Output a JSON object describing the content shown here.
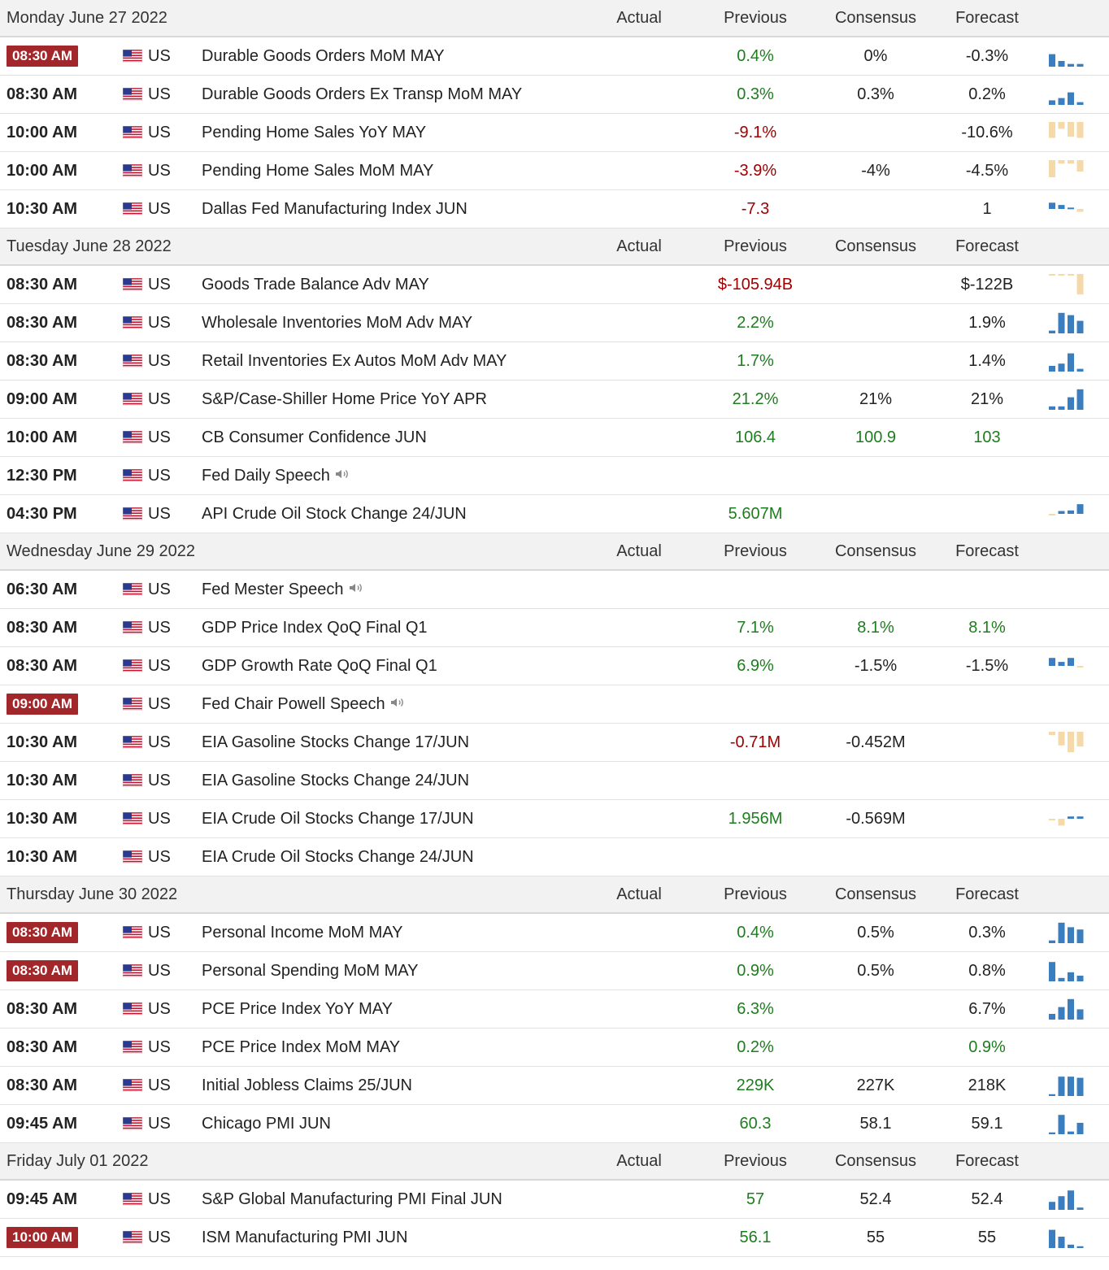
{
  "columns": {
    "actual": "Actual",
    "previous": "Previous",
    "consensus": "Consensus",
    "forecast": "Forecast"
  },
  "colors": {
    "highlight": "#a2272a",
    "positive": "#1e7d1e",
    "negative": "#a00000",
    "bar_blue": "#3a7ebf",
    "bar_tan": "#f5d9a8"
  },
  "days": [
    {
      "date": "Monday June 27 2022",
      "events": [
        {
          "time": "08:30 AM",
          "highlight": true,
          "country": "US",
          "name": "Durable Goods Orders MoM MAY",
          "actual": "",
          "previous": "0.4%",
          "previous_tone": "pos",
          "consensus": "0%",
          "consensus_tone": "neu",
          "forecast": "-0.3%",
          "forecast_tone": "neu",
          "spark": [
            {
              "v": 0.55,
              "c": "b"
            },
            {
              "v": 0.25,
              "c": "b"
            },
            {
              "v": 0.12,
              "c": "b"
            },
            {
              "v": 0.12,
              "c": "b"
            }
          ]
        },
        {
          "time": "08:30 AM",
          "highlight": false,
          "country": "US",
          "name": "Durable Goods Orders Ex Transp MoM MAY",
          "actual": "",
          "previous": "0.3%",
          "previous_tone": "pos",
          "consensus": "0.3%",
          "consensus_tone": "neu",
          "forecast": "0.2%",
          "forecast_tone": "neu",
          "spark": [
            {
              "v": 0.2,
              "c": "b"
            },
            {
              "v": 0.3,
              "c": "b"
            },
            {
              "v": 0.55,
              "c": "b"
            },
            {
              "v": 0.12,
              "c": "b"
            }
          ]
        },
        {
          "time": "10:00 AM",
          "highlight": false,
          "country": "US",
          "name": "Pending Home Sales YoY MAY",
          "actual": "",
          "previous": "-9.1%",
          "previous_tone": "neg",
          "consensus": "",
          "consensus_tone": "neu",
          "forecast": "-10.6%",
          "forecast_tone": "neu",
          "spark": [
            {
              "v": -0.7,
              "c": "t"
            },
            {
              "v": -0.3,
              "c": "t"
            },
            {
              "v": -0.65,
              "c": "t"
            },
            {
              "v": -0.7,
              "c": "t"
            }
          ]
        },
        {
          "time": "10:00 AM",
          "highlight": false,
          "country": "US",
          "name": "Pending Home Sales MoM MAY",
          "actual": "",
          "previous": "-3.9%",
          "previous_tone": "neg",
          "consensus": "-4%",
          "consensus_tone": "neu",
          "forecast": "-4.5%",
          "forecast_tone": "neu",
          "spark": [
            {
              "v": -0.75,
              "c": "t"
            },
            {
              "v": -0.15,
              "c": "t"
            },
            {
              "v": -0.15,
              "c": "t"
            },
            {
              "v": -0.5,
              "c": "t"
            }
          ]
        },
        {
          "time": "10:30 AM",
          "highlight": false,
          "country": "US",
          "name": "Dallas Fed Manufacturing Index JUN",
          "actual": "",
          "previous": "-7.3",
          "previous_tone": "neg",
          "consensus": "",
          "consensus_tone": "neu",
          "forecast": "1",
          "forecast_tone": "neu",
          "spark": [
            {
              "v": 0.55,
              "c": "b"
            },
            {
              "v": 0.35,
              "c": "b"
            },
            {
              "v": 0.12,
              "c": "b"
            },
            {
              "v": -0.25,
              "c": "t"
            }
          ]
        }
      ]
    },
    {
      "date": "Tuesday June 28 2022",
      "events": [
        {
          "time": "08:30 AM",
          "highlight": false,
          "country": "US",
          "name": "Goods Trade Balance Adv MAY",
          "actual": "",
          "previous": "$-105.94B",
          "previous_tone": "neg",
          "consensus": "",
          "consensus_tone": "neu",
          "forecast": "$-122B",
          "forecast_tone": "neu",
          "spark": [
            {
              "v": -0.06,
              "c": "t"
            },
            {
              "v": -0.06,
              "c": "t"
            },
            {
              "v": -0.06,
              "c": "t"
            },
            {
              "v": -0.9,
              "c": "t"
            }
          ]
        },
        {
          "time": "08:30 AM",
          "highlight": false,
          "country": "US",
          "name": "Wholesale Inventories MoM Adv MAY",
          "actual": "",
          "previous": "2.2%",
          "previous_tone": "pos",
          "consensus": "",
          "consensus_tone": "neu",
          "forecast": "1.9%",
          "forecast_tone": "neu",
          "spark": [
            {
              "v": 0.12,
              "c": "b"
            },
            {
              "v": 0.9,
              "c": "b"
            },
            {
              "v": 0.8,
              "c": "b"
            },
            {
              "v": 0.55,
              "c": "b"
            }
          ]
        },
        {
          "time": "08:30 AM",
          "highlight": false,
          "country": "US",
          "name": "Retail Inventories Ex Autos MoM Adv MAY",
          "actual": "",
          "previous": "1.7%",
          "previous_tone": "pos",
          "consensus": "",
          "consensus_tone": "neu",
          "forecast": "1.4%",
          "forecast_tone": "neu",
          "spark": [
            {
              "v": 0.25,
              "c": "b"
            },
            {
              "v": 0.35,
              "c": "b"
            },
            {
              "v": 0.8,
              "c": "b"
            },
            {
              "v": 0.12,
              "c": "b"
            }
          ]
        },
        {
          "time": "09:00 AM",
          "highlight": false,
          "country": "US",
          "name": "S&P/Case-Shiller Home Price YoY APR",
          "actual": "",
          "previous": "21.2%",
          "previous_tone": "pos",
          "consensus": "21%",
          "consensus_tone": "neu",
          "forecast": "21%",
          "forecast_tone": "neu",
          "spark": [
            {
              "v": 0.15,
              "c": "b"
            },
            {
              "v": 0.15,
              "c": "b"
            },
            {
              "v": 0.55,
              "c": "b"
            },
            {
              "v": 0.9,
              "c": "b"
            }
          ]
        },
        {
          "time": "10:00 AM",
          "highlight": false,
          "country": "US",
          "name": "CB Consumer Confidence JUN",
          "actual": "",
          "previous": "106.4",
          "previous_tone": "pos",
          "consensus": "100.9",
          "consensus_tone": "pos",
          "forecast": "103",
          "forecast_tone": "pos",
          "spark": []
        },
        {
          "time": "12:30 PM",
          "highlight": false,
          "country": "US",
          "name": "Fed Daily Speech",
          "speaker": true,
          "actual": "",
          "previous": "",
          "previous_tone": "neu",
          "consensus": "",
          "consensus_tone": "neu",
          "forecast": "",
          "forecast_tone": "neu",
          "spark": []
        },
        {
          "time": "04:30 PM",
          "highlight": false,
          "country": "US",
          "name": "API Crude Oil Stock Change 24/JUN",
          "actual": "",
          "previous": "5.607M",
          "previous_tone": "pos",
          "consensus": "",
          "consensus_tone": "neu",
          "forecast": "",
          "forecast_tone": "neu",
          "spark": [
            {
              "v": -0.1,
              "c": "t"
            },
            {
              "v": 0.25,
              "c": "b"
            },
            {
              "v": 0.3,
              "c": "b"
            },
            {
              "v": 0.85,
              "c": "b"
            }
          ]
        }
      ]
    },
    {
      "date": "Wednesday June 29 2022",
      "events": [
        {
          "time": "06:30 AM",
          "highlight": false,
          "country": "US",
          "name": "Fed Mester Speech",
          "speaker": true,
          "actual": "",
          "previous": "",
          "previous_tone": "neu",
          "consensus": "",
          "consensus_tone": "neu",
          "forecast": "",
          "forecast_tone": "neu",
          "spark": []
        },
        {
          "time": "08:30 AM",
          "highlight": false,
          "country": "US",
          "name": "GDP Price Index QoQ Final Q1",
          "actual": "",
          "previous": "7.1%",
          "previous_tone": "pos",
          "consensus": "8.1%",
          "consensus_tone": "pos",
          "forecast": "8.1%",
          "forecast_tone": "pos",
          "spark": []
        },
        {
          "time": "08:30 AM",
          "highlight": false,
          "country": "US",
          "name": "GDP Growth Rate QoQ Final Q1",
          "actual": "",
          "previous": "6.9%",
          "previous_tone": "pos",
          "consensus": "-1.5%",
          "consensus_tone": "neu",
          "forecast": "-1.5%",
          "forecast_tone": "neu",
          "spark": [
            {
              "v": 0.7,
              "c": "b"
            },
            {
              "v": 0.35,
              "c": "b"
            },
            {
              "v": 0.7,
              "c": "b"
            },
            {
              "v": -0.1,
              "c": "t"
            }
          ]
        },
        {
          "time": "09:00 AM",
          "highlight": true,
          "country": "US",
          "name": "Fed Chair Powell Speech",
          "speaker": true,
          "actual": "",
          "previous": "",
          "previous_tone": "neu",
          "consensus": "",
          "consensus_tone": "neu",
          "forecast": "",
          "forecast_tone": "neu",
          "spark": []
        },
        {
          "time": "10:30 AM",
          "highlight": false,
          "country": "US",
          "name": "EIA Gasoline Stocks Change 17/JUN",
          "actual": "",
          "previous": "-0.71M",
          "previous_tone": "neg",
          "consensus": "-0.452M",
          "consensus_tone": "neu",
          "forecast": "",
          "forecast_tone": "neu",
          "spark": [
            {
              "v": -0.15,
              "c": "t"
            },
            {
              "v": -0.6,
              "c": "t"
            },
            {
              "v": -0.9,
              "c": "t"
            },
            {
              "v": -0.65,
              "c": "t"
            }
          ]
        },
        {
          "time": "10:30 AM",
          "highlight": false,
          "country": "US",
          "name": "EIA Gasoline Stocks Change 24/JUN",
          "actual": "",
          "previous": "",
          "previous_tone": "neu",
          "consensus": "",
          "consensus_tone": "neu",
          "forecast": "",
          "forecast_tone": "neu",
          "spark": []
        },
        {
          "time": "10:30 AM",
          "highlight": false,
          "country": "US",
          "name": "EIA Crude Oil Stocks Change 17/JUN",
          "actual": "",
          "previous": "1.956M",
          "previous_tone": "pos",
          "consensus": "-0.569M",
          "consensus_tone": "neu",
          "forecast": "",
          "forecast_tone": "neu",
          "spark": [
            {
              "v": -0.08,
              "c": "t"
            },
            {
              "v": -0.6,
              "c": "t"
            },
            {
              "v": 0.2,
              "c": "b"
            },
            {
              "v": 0.2,
              "c": "b"
            }
          ]
        },
        {
          "time": "10:30 AM",
          "highlight": false,
          "country": "US",
          "name": "EIA Crude Oil Stocks Change 24/JUN",
          "actual": "",
          "previous": "",
          "previous_tone": "neu",
          "consensus": "",
          "consensus_tone": "neu",
          "forecast": "",
          "forecast_tone": "neu",
          "spark": []
        }
      ]
    },
    {
      "date": "Thursday June 30 2022",
      "events": [
        {
          "time": "08:30 AM",
          "highlight": true,
          "country": "US",
          "name": "Personal Income MoM MAY",
          "actual": "",
          "previous": "0.4%",
          "previous_tone": "pos",
          "consensus": "0.5%",
          "consensus_tone": "neu",
          "forecast": "0.3%",
          "forecast_tone": "neu",
          "spark": [
            {
              "v": 0.12,
              "c": "b"
            },
            {
              "v": 0.9,
              "c": "b"
            },
            {
              "v": 0.7,
              "c": "b"
            },
            {
              "v": 0.6,
              "c": "b"
            }
          ]
        },
        {
          "time": "08:30 AM",
          "highlight": true,
          "country": "US",
          "name": "Personal Spending MoM MAY",
          "actual": "",
          "previous": "0.9%",
          "previous_tone": "pos",
          "consensus": "0.5%",
          "consensus_tone": "neu",
          "forecast": "0.8%",
          "forecast_tone": "neu",
          "spark": [
            {
              "v": 0.85,
              "c": "b"
            },
            {
              "v": 0.15,
              "c": "b"
            },
            {
              "v": 0.4,
              "c": "b"
            },
            {
              "v": 0.25,
              "c": "b"
            }
          ]
        },
        {
          "time": "08:30 AM",
          "highlight": false,
          "country": "US",
          "name": "PCE Price Index YoY MAY",
          "actual": "",
          "previous": "6.3%",
          "previous_tone": "pos",
          "consensus": "",
          "consensus_tone": "neu",
          "forecast": "6.7%",
          "forecast_tone": "neu",
          "spark": [
            {
              "v": 0.25,
              "c": "b"
            },
            {
              "v": 0.55,
              "c": "b"
            },
            {
              "v": 0.9,
              "c": "b"
            },
            {
              "v": 0.45,
              "c": "b"
            }
          ]
        },
        {
          "time": "08:30 AM",
          "highlight": false,
          "country": "US",
          "name": "PCE Price Index MoM MAY",
          "actual": "",
          "previous": "0.2%",
          "previous_tone": "pos",
          "consensus": "",
          "consensus_tone": "neu",
          "forecast": "0.9%",
          "forecast_tone": "pos",
          "spark": []
        },
        {
          "time": "08:30 AM",
          "highlight": false,
          "country": "US",
          "name": "Initial Jobless Claims 25/JUN",
          "actual": "",
          "previous": "229K",
          "previous_tone": "pos",
          "consensus": "227K",
          "consensus_tone": "neu",
          "forecast": "218K",
          "forecast_tone": "neu",
          "spark": [
            {
              "v": 0.08,
              "c": "b"
            },
            {
              "v": 0.85,
              "c": "b"
            },
            {
              "v": 0.85,
              "c": "b"
            },
            {
              "v": 0.8,
              "c": "b"
            }
          ]
        },
        {
          "time": "09:45 AM",
          "highlight": false,
          "country": "US",
          "name": "Chicago PMI JUN",
          "actual": "",
          "previous": "60.3",
          "previous_tone": "pos",
          "consensus": "58.1",
          "consensus_tone": "neu",
          "forecast": "59.1",
          "forecast_tone": "neu",
          "spark": [
            {
              "v": 0.08,
              "c": "b"
            },
            {
              "v": 0.85,
              "c": "b"
            },
            {
              "v": 0.12,
              "c": "b"
            },
            {
              "v": 0.5,
              "c": "b"
            }
          ]
        }
      ]
    },
    {
      "date": "Friday July 01 2022",
      "events": [
        {
          "time": "09:45 AM",
          "highlight": false,
          "country": "US",
          "name": "S&P Global Manufacturing PMI Final JUN",
          "actual": "",
          "previous": "57",
          "previous_tone": "pos",
          "consensus": "52.4",
          "consensus_tone": "neu",
          "forecast": "52.4",
          "forecast_tone": "neu",
          "spark": [
            {
              "v": 0.35,
              "c": "b"
            },
            {
              "v": 0.6,
              "c": "b"
            },
            {
              "v": 0.85,
              "c": "b"
            },
            {
              "v": 0.1,
              "c": "b"
            }
          ]
        },
        {
          "time": "10:00 AM",
          "highlight": true,
          "country": "US",
          "name": "ISM Manufacturing PMI JUN",
          "actual": "",
          "previous": "56.1",
          "previous_tone": "pos",
          "consensus": "55",
          "consensus_tone": "neu",
          "forecast": "55",
          "forecast_tone": "neu",
          "spark": [
            {
              "v": 0.8,
              "c": "b"
            },
            {
              "v": 0.5,
              "c": "b"
            },
            {
              "v": 0.15,
              "c": "b"
            },
            {
              "v": 0.08,
              "c": "b"
            }
          ]
        }
      ]
    }
  ]
}
